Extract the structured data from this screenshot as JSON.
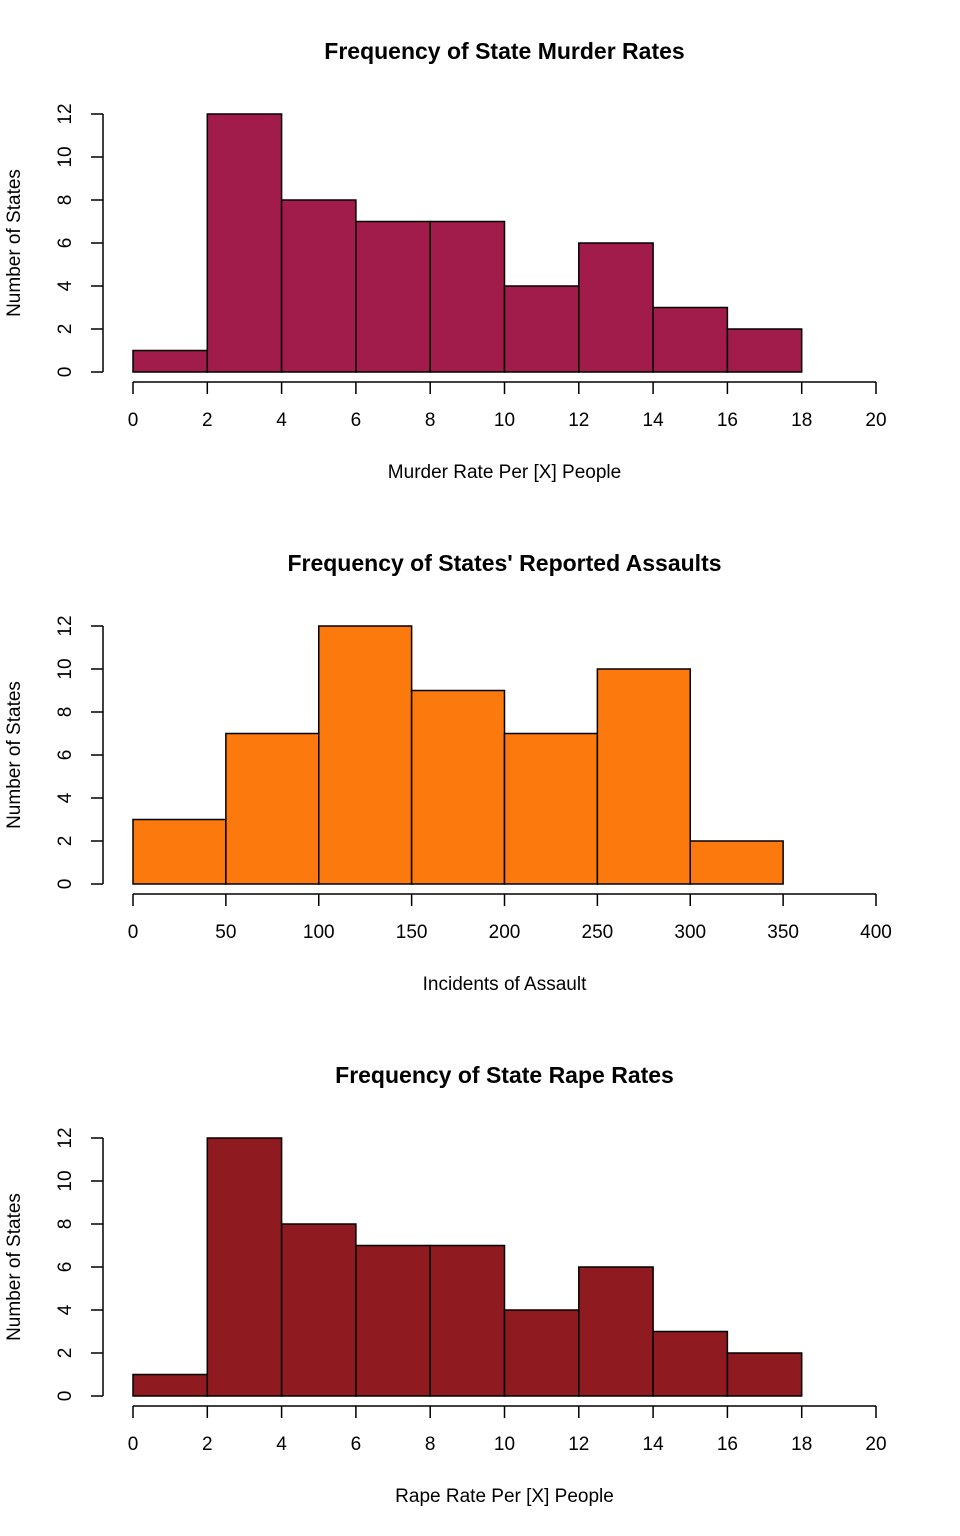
{
  "chart_data": [
    {
      "type": "histogram",
      "title": "Frequency of State Murder Rates",
      "xlabel": "Murder Rate Per [X] People",
      "ylabel": "Number of States",
      "bins": [
        0,
        2,
        4,
        6,
        8,
        10,
        12,
        14,
        16,
        18
      ],
      "values": [
        1,
        12,
        8,
        7,
        7,
        4,
        6,
        3,
        2
      ],
      "color": "#a21c4b",
      "xlim": [
        0,
        20
      ],
      "xticks": [
        0,
        2,
        4,
        6,
        8,
        10,
        12,
        14,
        16,
        18,
        20
      ],
      "ylim": [
        0,
        12
      ],
      "yticks": [
        0,
        2,
        4,
        6,
        8,
        10,
        12
      ]
    },
    {
      "type": "histogram",
      "title": "Frequency of States' Reported Assaults",
      "xlabel": "Incidents of Assault",
      "ylabel": "Number of States",
      "bins": [
        0,
        50,
        100,
        150,
        200,
        250,
        300,
        350
      ],
      "values": [
        3,
        7,
        12,
        9,
        7,
        10,
        2
      ],
      "color": "#fb790d",
      "xlim": [
        0,
        400
      ],
      "xticks": [
        0,
        50,
        100,
        150,
        200,
        250,
        300,
        350,
        400
      ],
      "ylim": [
        0,
        12
      ],
      "yticks": [
        0,
        2,
        4,
        6,
        8,
        10,
        12
      ]
    },
    {
      "type": "histogram",
      "title": "Frequency of State Rape Rates",
      "xlabel": "Rape Rate Per [X] People",
      "ylabel": "Number of States",
      "bins": [
        0,
        2,
        4,
        6,
        8,
        10,
        12,
        14,
        16,
        18
      ],
      "values": [
        1,
        12,
        8,
        7,
        7,
        4,
        6,
        3,
        2
      ],
      "color": "#8f1a20",
      "xlim": [
        0,
        20
      ],
      "xticks": [
        0,
        2,
        4,
        6,
        8,
        10,
        12,
        14,
        16,
        18,
        20
      ],
      "ylim": [
        0,
        12
      ],
      "yticks": [
        0,
        2,
        4,
        6,
        8,
        10,
        12
      ]
    }
  ]
}
